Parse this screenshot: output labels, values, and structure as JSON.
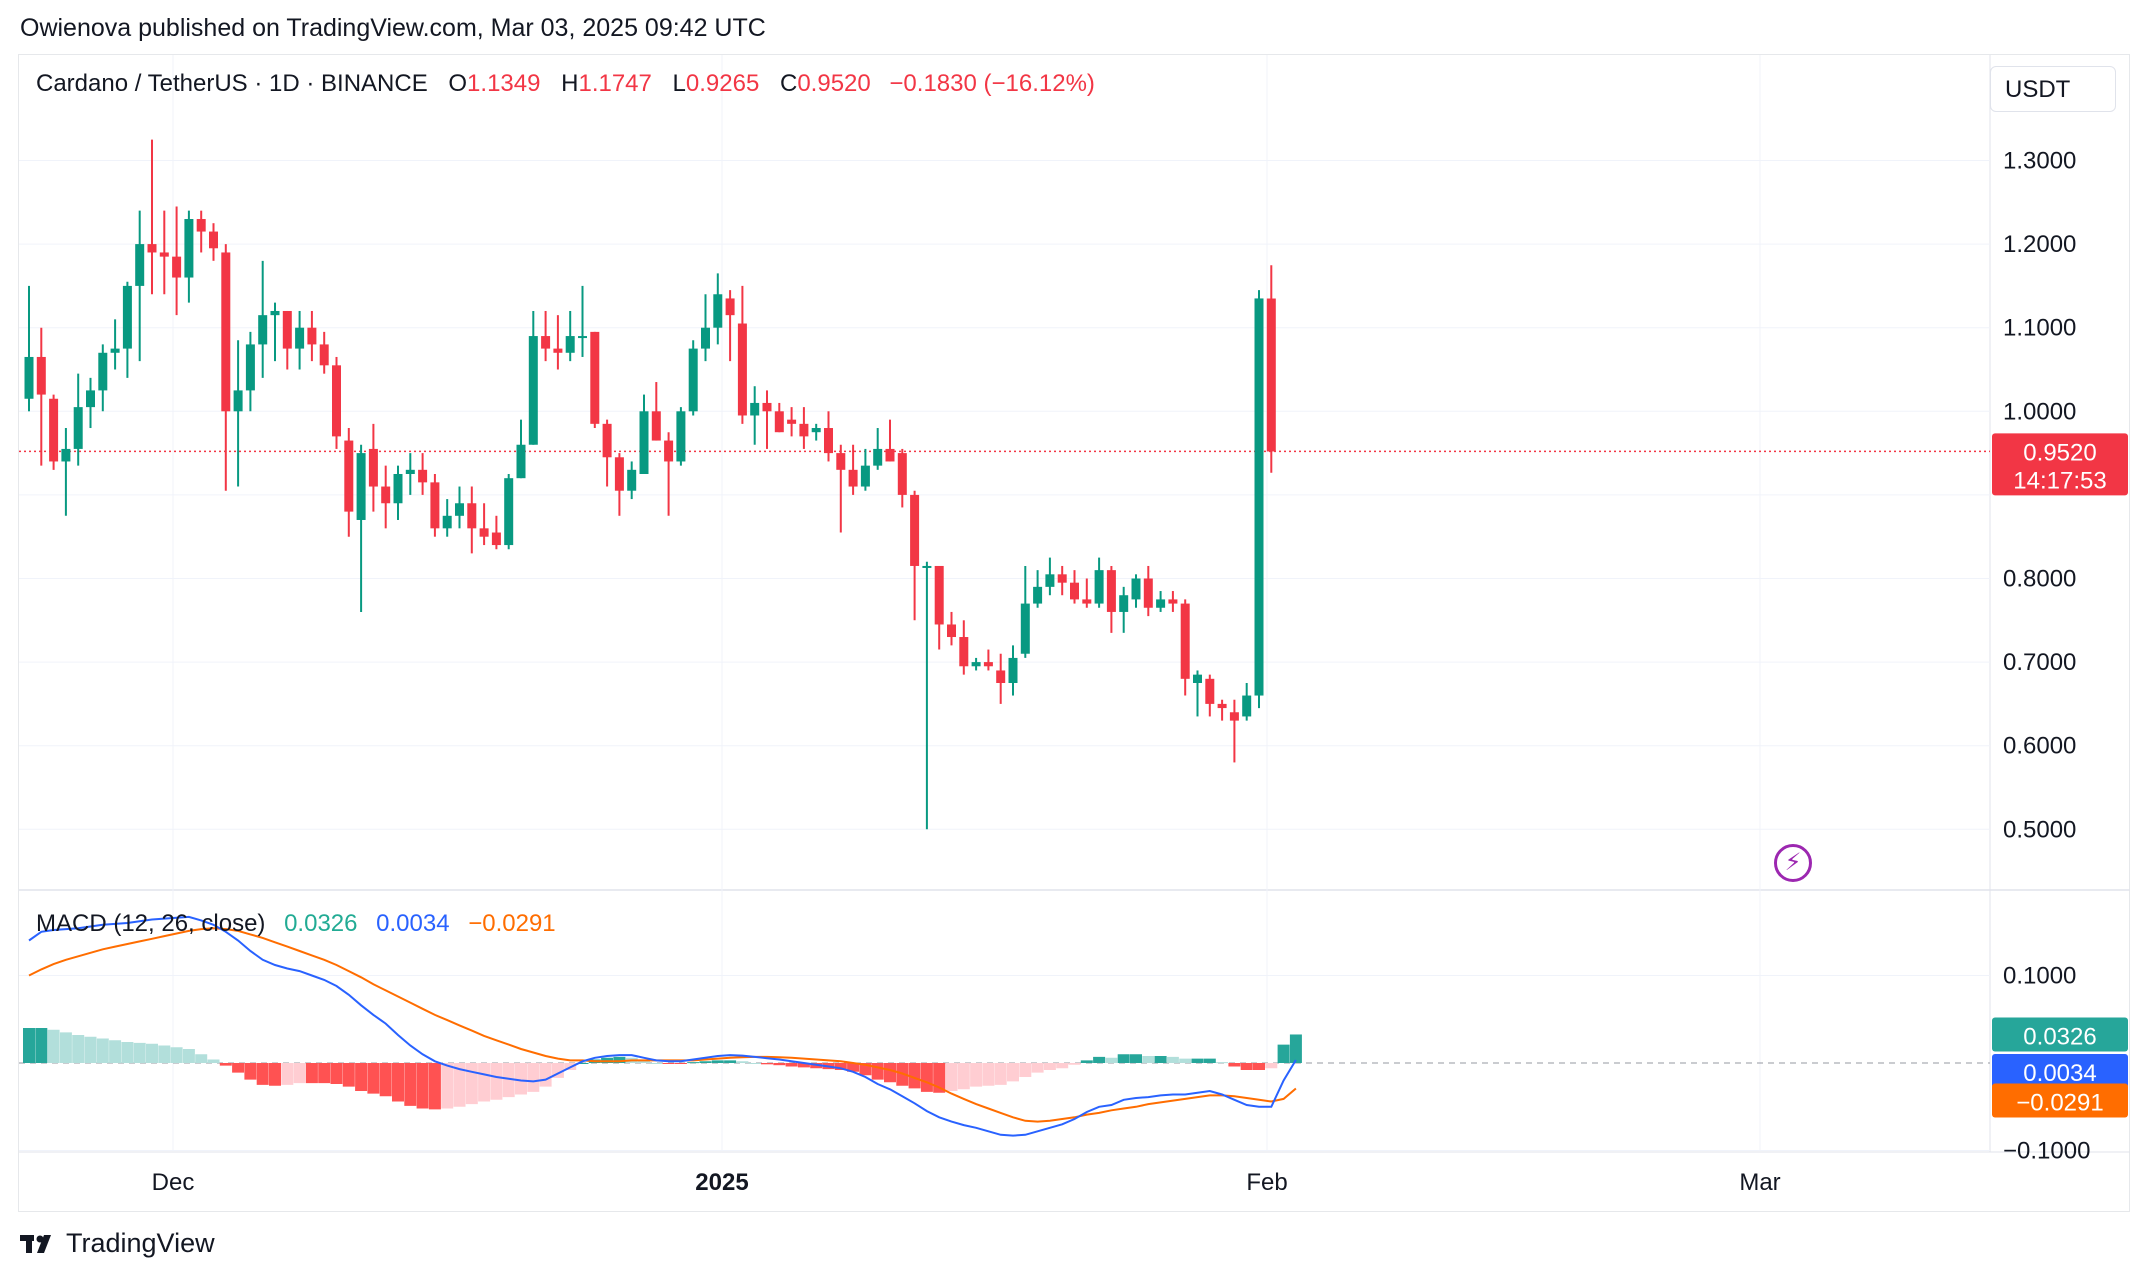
{
  "header": {
    "published": "Owienova published on TradingView.com, Mar 03, 2025 09:42 UTC"
  },
  "legend": {
    "symbol": "Cardano / TetherUS · 1D · BINANCE",
    "o_label": "O",
    "o_value": "1.1349",
    "h_label": "H",
    "h_value": "1.1747",
    "l_label": "L",
    "l_value": "0.9265",
    "c_label": "C",
    "c_value": "0.9520",
    "change": "−0.1830 (−16.12%)"
  },
  "currency_button": "USDT",
  "price_axis": {
    "ticks": [
      "1.3000",
      "1.2000",
      "1.1000",
      "1.0000",
      "0.8000",
      "0.7000",
      "0.6000",
      "0.5000"
    ],
    "last_price": "0.9520",
    "countdown": "14:17:53"
  },
  "macd": {
    "title": "MACD (12, 26, close)",
    "hist_value": "0.0326",
    "macd_value": "0.0034",
    "signal_value": "−0.0291",
    "axis_ticks": [
      "0.1000",
      "−0.1000"
    ]
  },
  "time_axis": {
    "labels": [
      "Dec",
      "2025",
      "Feb",
      "Mar"
    ]
  },
  "footer": {
    "brand": "TradingView"
  },
  "colors": {
    "up": "#089981",
    "down": "#f23645",
    "macd_line": "#2962ff",
    "signal_line": "#ff6d00",
    "hist_up_strong": "#26a69a",
    "hist_up_weak": "#b2dfdb",
    "hist_down_strong": "#ff5252",
    "hist_down_weak": "#ffcdd2"
  },
  "chart_data": {
    "type": "candlestick",
    "symbol": "ADAUSDT",
    "interval": "1D",
    "exchange": "BINANCE",
    "x_labels": [
      "Dec",
      "2025",
      "Feb",
      "Mar"
    ],
    "ylim": [
      0.45,
      1.34
    ],
    "candles": [
      {
        "o": 1.015,
        "h": 1.15,
        "l": 1.0,
        "c": 1.065
      },
      {
        "o": 1.065,
        "h": 1.1,
        "l": 0.935,
        "c": 1.02
      },
      {
        "o": 1.015,
        "h": 1.02,
        "l": 0.93,
        "c": 0.94
      },
      {
        "o": 0.94,
        "h": 0.98,
        "l": 0.875,
        "c": 0.955
      },
      {
        "o": 0.955,
        "h": 1.045,
        "l": 0.935,
        "c": 1.005
      },
      {
        "o": 1.005,
        "h": 1.04,
        "l": 0.98,
        "c": 1.025
      },
      {
        "o": 1.025,
        "h": 1.08,
        "l": 1.0,
        "c": 1.07
      },
      {
        "o": 1.07,
        "h": 1.11,
        "l": 1.05,
        "c": 1.075
      },
      {
        "o": 1.075,
        "h": 1.155,
        "l": 1.04,
        "c": 1.15
      },
      {
        "o": 1.15,
        "h": 1.24,
        "l": 1.06,
        "c": 1.2
      },
      {
        "o": 1.2,
        "h": 1.325,
        "l": 1.14,
        "c": 1.19
      },
      {
        "o": 1.19,
        "h": 1.24,
        "l": 1.14,
        "c": 1.185
      },
      {
        "o": 1.185,
        "h": 1.245,
        "l": 1.115,
        "c": 1.16
      },
      {
        "o": 1.16,
        "h": 1.24,
        "l": 1.13,
        "c": 1.23
      },
      {
        "o": 1.23,
        "h": 1.24,
        "l": 1.19,
        "c": 1.215
      },
      {
        "o": 1.215,
        "h": 1.225,
        "l": 1.18,
        "c": 1.195
      },
      {
        "o": 1.19,
        "h": 1.2,
        "l": 0.905,
        "c": 1.0
      },
      {
        "o": 1.0,
        "h": 1.085,
        "l": 0.91,
        "c": 1.025
      },
      {
        "o": 1.025,
        "h": 1.095,
        "l": 1.0,
        "c": 1.08
      },
      {
        "o": 1.08,
        "h": 1.18,
        "l": 1.04,
        "c": 1.115
      },
      {
        "o": 1.115,
        "h": 1.13,
        "l": 1.06,
        "c": 1.12
      },
      {
        "o": 1.12,
        "h": 1.12,
        "l": 1.05,
        "c": 1.075
      },
      {
        "o": 1.075,
        "h": 1.12,
        "l": 1.05,
        "c": 1.1
      },
      {
        "o": 1.1,
        "h": 1.12,
        "l": 1.06,
        "c": 1.08
      },
      {
        "o": 1.08,
        "h": 1.095,
        "l": 1.045,
        "c": 1.055
      },
      {
        "o": 1.055,
        "h": 1.065,
        "l": 0.955,
        "c": 0.97
      },
      {
        "o": 0.965,
        "h": 0.98,
        "l": 0.85,
        "c": 0.88
      },
      {
        "o": 0.87,
        "h": 0.96,
        "l": 0.76,
        "c": 0.95
      },
      {
        "o": 0.955,
        "h": 0.985,
        "l": 0.88,
        "c": 0.91
      },
      {
        "o": 0.91,
        "h": 0.935,
        "l": 0.86,
        "c": 0.89
      },
      {
        "o": 0.89,
        "h": 0.935,
        "l": 0.87,
        "c": 0.925
      },
      {
        "o": 0.925,
        "h": 0.95,
        "l": 0.9,
        "c": 0.93
      },
      {
        "o": 0.93,
        "h": 0.95,
        "l": 0.9,
        "c": 0.915
      },
      {
        "o": 0.915,
        "h": 0.925,
        "l": 0.85,
        "c": 0.86
      },
      {
        "o": 0.86,
        "h": 0.895,
        "l": 0.85,
        "c": 0.875
      },
      {
        "o": 0.875,
        "h": 0.91,
        "l": 0.86,
        "c": 0.89
      },
      {
        "o": 0.89,
        "h": 0.91,
        "l": 0.83,
        "c": 0.86
      },
      {
        "o": 0.86,
        "h": 0.89,
        "l": 0.84,
        "c": 0.85
      },
      {
        "o": 0.855,
        "h": 0.875,
        "l": 0.835,
        "c": 0.84
      },
      {
        "o": 0.84,
        "h": 0.925,
        "l": 0.835,
        "c": 0.92
      },
      {
        "o": 0.92,
        "h": 0.99,
        "l": 0.92,
        "c": 0.96
      },
      {
        "o": 0.96,
        "h": 1.12,
        "l": 0.96,
        "c": 1.09
      },
      {
        "o": 1.09,
        "h": 1.12,
        "l": 1.06,
        "c": 1.075
      },
      {
        "o": 1.075,
        "h": 1.115,
        "l": 1.05,
        "c": 1.07
      },
      {
        "o": 1.07,
        "h": 1.12,
        "l": 1.06,
        "c": 1.09
      },
      {
        "o": 1.09,
        "h": 1.15,
        "l": 1.065,
        "c": 1.09
      },
      {
        "o": 1.095,
        "h": 1.095,
        "l": 0.98,
        "c": 0.985
      },
      {
        "o": 0.985,
        "h": 0.99,
        "l": 0.91,
        "c": 0.945
      },
      {
        "o": 0.945,
        "h": 0.95,
        "l": 0.875,
        "c": 0.905
      },
      {
        "o": 0.905,
        "h": 0.94,
        "l": 0.895,
        "c": 0.93
      },
      {
        "o": 0.925,
        "h": 1.02,
        "l": 0.925,
        "c": 1.0
      },
      {
        "o": 1.0,
        "h": 1.035,
        "l": 0.965,
        "c": 0.965
      },
      {
        "o": 0.965,
        "h": 0.975,
        "l": 0.875,
        "c": 0.94
      },
      {
        "o": 0.94,
        "h": 1.005,
        "l": 0.935,
        "c": 1.0
      },
      {
        "o": 1.0,
        "h": 1.085,
        "l": 0.995,
        "c": 1.075
      },
      {
        "o": 1.075,
        "h": 1.14,
        "l": 1.06,
        "c": 1.1
      },
      {
        "o": 1.1,
        "h": 1.165,
        "l": 1.08,
        "c": 1.14
      },
      {
        "o": 1.135,
        "h": 1.145,
        "l": 1.06,
        "c": 1.115
      },
      {
        "o": 1.105,
        "h": 1.15,
        "l": 0.985,
        "c": 0.995
      },
      {
        "o": 0.995,
        "h": 1.03,
        "l": 0.96,
        "c": 1.01
      },
      {
        "o": 1.01,
        "h": 1.025,
        "l": 0.955,
        "c": 1.0
      },
      {
        "o": 1.0,
        "h": 1.01,
        "l": 0.975,
        "c": 0.975
      },
      {
        "o": 0.99,
        "h": 1.005,
        "l": 0.97,
        "c": 0.985
      },
      {
        "o": 0.985,
        "h": 1.005,
        "l": 0.955,
        "c": 0.97
      },
      {
        "o": 0.975,
        "h": 0.985,
        "l": 0.965,
        "c": 0.98
      },
      {
        "o": 0.98,
        "h": 1.0,
        "l": 0.94,
        "c": 0.95
      },
      {
        "o": 0.95,
        "h": 0.96,
        "l": 0.855,
        "c": 0.93
      },
      {
        "o": 0.93,
        "h": 0.96,
        "l": 0.9,
        "c": 0.91
      },
      {
        "o": 0.91,
        "h": 0.955,
        "l": 0.905,
        "c": 0.935
      },
      {
        "o": 0.935,
        "h": 0.98,
        "l": 0.93,
        "c": 0.955
      },
      {
        "o": 0.955,
        "h": 0.99,
        "l": 0.94,
        "c": 0.94
      },
      {
        "o": 0.95,
        "h": 0.955,
        "l": 0.885,
        "c": 0.9
      },
      {
        "o": 0.9,
        "h": 0.905,
        "l": 0.75,
        "c": 0.815
      },
      {
        "o": 0.815,
        "h": 0.82,
        "l": 0.5,
        "c": 0.815
      },
      {
        "o": 0.815,
        "h": 0.815,
        "l": 0.715,
        "c": 0.745
      },
      {
        "o": 0.745,
        "h": 0.76,
        "l": 0.72,
        "c": 0.73
      },
      {
        "o": 0.73,
        "h": 0.75,
        "l": 0.685,
        "c": 0.695
      },
      {
        "o": 0.695,
        "h": 0.705,
        "l": 0.69,
        "c": 0.7
      },
      {
        "o": 0.7,
        "h": 0.715,
        "l": 0.69,
        "c": 0.695
      },
      {
        "o": 0.69,
        "h": 0.71,
        "l": 0.65,
        "c": 0.675
      },
      {
        "o": 0.675,
        "h": 0.72,
        "l": 0.66,
        "c": 0.705
      },
      {
        "o": 0.71,
        "h": 0.815,
        "l": 0.705,
        "c": 0.77
      },
      {
        "o": 0.77,
        "h": 0.81,
        "l": 0.765,
        "c": 0.79
      },
      {
        "o": 0.79,
        "h": 0.825,
        "l": 0.78,
        "c": 0.805
      },
      {
        "o": 0.805,
        "h": 0.815,
        "l": 0.78,
        "c": 0.795
      },
      {
        "o": 0.795,
        "h": 0.81,
        "l": 0.77,
        "c": 0.775
      },
      {
        "o": 0.775,
        "h": 0.8,
        "l": 0.765,
        "c": 0.77
      },
      {
        "o": 0.77,
        "h": 0.825,
        "l": 0.765,
        "c": 0.81
      },
      {
        "o": 0.81,
        "h": 0.815,
        "l": 0.735,
        "c": 0.76
      },
      {
        "o": 0.76,
        "h": 0.79,
        "l": 0.735,
        "c": 0.78
      },
      {
        "o": 0.775,
        "h": 0.805,
        "l": 0.765,
        "c": 0.8
      },
      {
        "o": 0.8,
        "h": 0.815,
        "l": 0.755,
        "c": 0.765
      },
      {
        "o": 0.765,
        "h": 0.785,
        "l": 0.76,
        "c": 0.775
      },
      {
        "o": 0.775,
        "h": 0.785,
        "l": 0.76,
        "c": 0.77
      },
      {
        "o": 0.77,
        "h": 0.775,
        "l": 0.66,
        "c": 0.68
      },
      {
        "o": 0.675,
        "h": 0.69,
        "l": 0.635,
        "c": 0.685
      },
      {
        "o": 0.68,
        "h": 0.685,
        "l": 0.635,
        "c": 0.65
      },
      {
        "o": 0.65,
        "h": 0.655,
        "l": 0.63,
        "c": 0.645
      },
      {
        "o": 0.64,
        "h": 0.655,
        "l": 0.58,
        "c": 0.63
      },
      {
        "o": 0.635,
        "h": 0.675,
        "l": 0.63,
        "c": 0.66
      },
      {
        "o": 0.66,
        "h": 1.145,
        "l": 0.645,
        "c": 1.135
      },
      {
        "o": 1.1349,
        "h": 1.1747,
        "l": 0.9265,
        "c": 0.952
      }
    ],
    "macd": {
      "ylim": [
        -0.105,
        0.17
      ],
      "macd_line": [
        0.14,
        0.15,
        0.152,
        0.153,
        0.154,
        0.156,
        0.158,
        0.159,
        0.16,
        0.162,
        0.164,
        0.165,
        0.166,
        0.167,
        0.163,
        0.158,
        0.15,
        0.14,
        0.128,
        0.118,
        0.112,
        0.108,
        0.105,
        0.1,
        0.095,
        0.088,
        0.078,
        0.066,
        0.055,
        0.045,
        0.032,
        0.02,
        0.01,
        0.002,
        -0.003,
        -0.007,
        -0.01,
        -0.013,
        -0.016,
        -0.018,
        -0.02,
        -0.021,
        -0.019,
        -0.012,
        -0.005,
        0.002,
        0.006,
        0.008,
        0.009,
        0.009,
        0.006,
        0.003,
        0.002,
        0.002,
        0.004,
        0.006,
        0.008,
        0.009,
        0.0085,
        0.007,
        0.0055,
        0.004,
        0.002,
        0.0,
        -0.002,
        -0.004,
        -0.006,
        -0.01,
        -0.016,
        -0.024,
        -0.03,
        -0.038,
        -0.046,
        -0.055,
        -0.062,
        -0.067,
        -0.071,
        -0.074,
        -0.078,
        -0.082,
        -0.083,
        -0.082,
        -0.078,
        -0.074,
        -0.07,
        -0.064,
        -0.056,
        -0.05,
        -0.048,
        -0.042,
        -0.04,
        -0.039,
        -0.037,
        -0.036,
        -0.036,
        -0.034,
        -0.032,
        -0.036,
        -0.042,
        -0.048,
        -0.05,
        -0.05,
        -0.02,
        0.0034
      ],
      "signal_line": [
        0.1,
        0.107,
        0.113,
        0.118,
        0.122,
        0.126,
        0.13,
        0.133,
        0.136,
        0.139,
        0.142,
        0.145,
        0.148,
        0.151,
        0.153,
        0.154,
        0.153,
        0.151,
        0.147,
        0.143,
        0.138,
        0.133,
        0.128,
        0.123,
        0.118,
        0.112,
        0.105,
        0.098,
        0.09,
        0.083,
        0.076,
        0.069,
        0.062,
        0.055,
        0.049,
        0.043,
        0.037,
        0.031,
        0.026,
        0.021,
        0.016,
        0.012,
        0.008,
        0.005,
        0.003,
        0.003,
        0.002,
        0.002,
        0.002,
        0.003,
        0.003,
        0.003,
        0.003,
        0.003,
        0.003,
        0.004,
        0.005,
        0.006,
        0.0065,
        0.007,
        0.007,
        0.0065,
        0.006,
        0.005,
        0.004,
        0.003,
        0.002,
        0.0,
        -0.002,
        -0.005,
        -0.008,
        -0.012,
        -0.017,
        -0.022,
        -0.028,
        -0.035,
        -0.041,
        -0.047,
        -0.052,
        -0.057,
        -0.062,
        -0.066,
        -0.067,
        -0.066,
        -0.064,
        -0.062,
        -0.059,
        -0.057,
        -0.054,
        -0.052,
        -0.05,
        -0.047,
        -0.045,
        -0.043,
        -0.041,
        -0.039,
        -0.037,
        -0.037,
        -0.038,
        -0.04,
        -0.042,
        -0.044,
        -0.041,
        -0.0291
      ],
      "histogram": [
        0.04,
        0.04,
        0.038,
        0.035,
        0.032,
        0.03,
        0.028,
        0.026,
        0.024,
        0.023,
        0.022,
        0.02,
        0.018,
        0.016,
        0.01,
        0.004,
        -0.003,
        -0.011,
        -0.019,
        -0.025,
        -0.026,
        -0.025,
        -0.023,
        -0.023,
        -0.023,
        -0.024,
        -0.027,
        -0.032,
        -0.035,
        -0.038,
        -0.044,
        -0.049,
        -0.052,
        -0.053,
        -0.052,
        -0.05,
        -0.047,
        -0.044,
        -0.042,
        -0.039,
        -0.036,
        -0.033,
        -0.027,
        -0.017,
        -0.008,
        0.0,
        0.004,
        0.006,
        0.007,
        0.006,
        0.003,
        0.0,
        -0.001,
        -0.001,
        0.001,
        0.002,
        0.003,
        0.003,
        0.002,
        0.0,
        -0.0015,
        -0.0025,
        -0.004,
        -0.005,
        -0.006,
        -0.007,
        -0.008,
        -0.01,
        -0.014,
        -0.019,
        -0.022,
        -0.026,
        -0.029,
        -0.033,
        -0.034,
        -0.032,
        -0.03,
        -0.027,
        -0.026,
        -0.025,
        -0.021,
        -0.016,
        -0.011,
        -0.008,
        -0.006,
        -0.002,
        0.003,
        0.007,
        0.006,
        0.01,
        0.01,
        0.008,
        0.008,
        0.007,
        0.005,
        0.005,
        0.005,
        0.001,
        -0.004,
        -0.008,
        -0.008,
        -0.006,
        0.021,
        0.0326
      ]
    }
  }
}
